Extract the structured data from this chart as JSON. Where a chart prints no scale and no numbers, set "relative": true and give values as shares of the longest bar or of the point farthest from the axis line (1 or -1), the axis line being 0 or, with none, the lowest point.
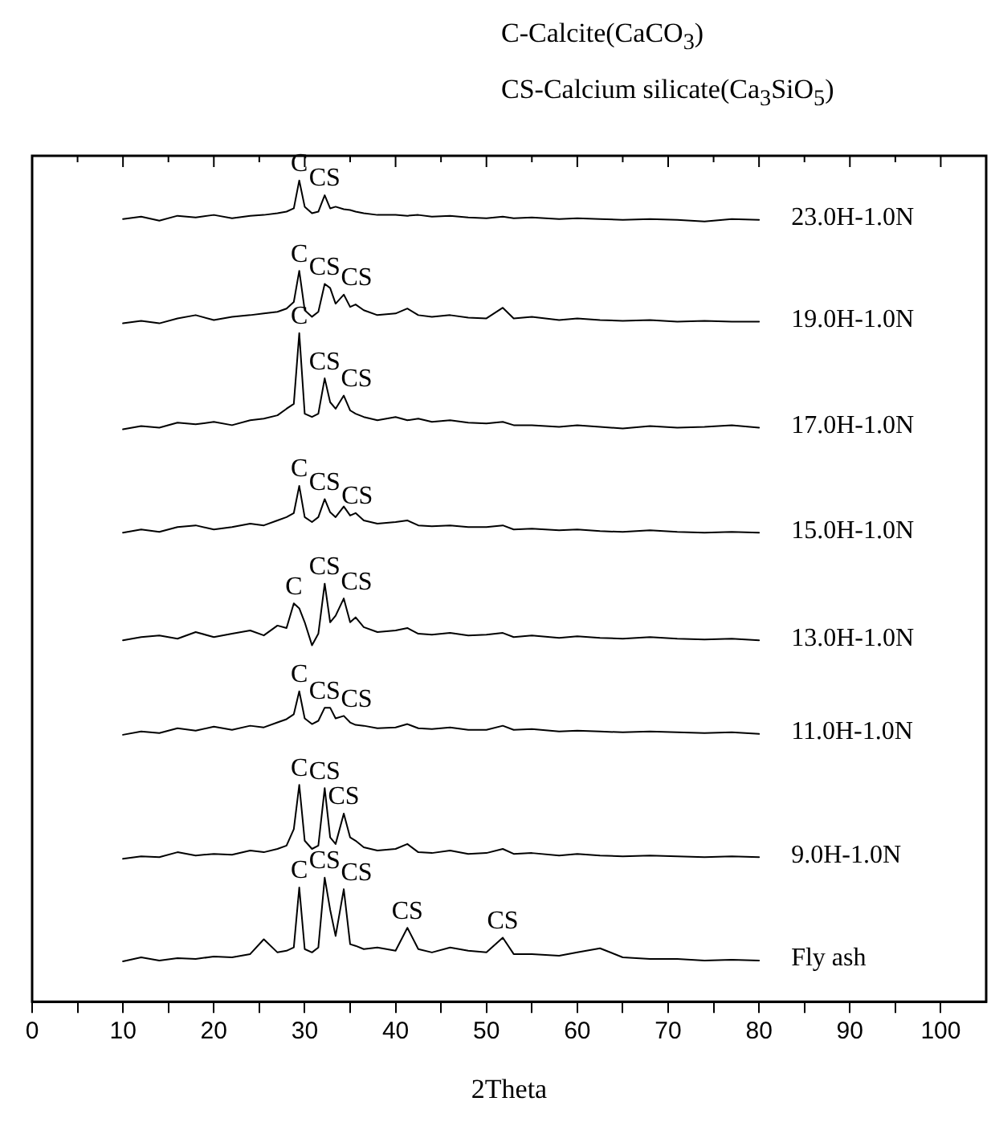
{
  "chart_data": {
    "type": "line",
    "title": "C-Calcite(CaCO$_{3}$)",
    "subtitle": "CS-Calcium silicate(Ca$_{3}$SiO$_{5}$)",
    "xlabel": "2Theta",
    "relative": true,
    "legend": false,
    "grid": false,
    "marker": "none",
    "line_style": "solid",
    "xlim": [
      0,
      105
    ],
    "xticks": [
      0,
      {
        "value": 5,
        "label": null
      },
      10,
      {
        "value": 15,
        "label": null
      },
      20,
      {
        "value": 25,
        "label": null
      },
      30,
      {
        "value": 35,
        "label": null
      },
      40,
      {
        "value": 45,
        "label": null
      },
      50,
      {
        "value": 55,
        "label": null
      },
      60,
      {
        "value": 65,
        "label": null
      },
      70,
      {
        "value": 75,
        "label": null
      },
      80,
      {
        "value": 85,
        "label": null
      },
      90,
      {
        "value": 95,
        "label": null
      },
      100
    ],
    "x": [
      10,
      12,
      14,
      16,
      18,
      20,
      22,
      24,
      25.5,
      27,
      28,
      28.8,
      29.4,
      30,
      30.8,
      31.5,
      32.2,
      32.8,
      33.4,
      34.3,
      35,
      35.6,
      36.5,
      38,
      40,
      41.3,
      42.5,
      44,
      46,
      48,
      50,
      51.8,
      53,
      55,
      58,
      60,
      62.5,
      65,
      68,
      71,
      74,
      77,
      80
    ],
    "series": [
      {
        "name": "23.0H-1.0N",
        "color": "#000000",
        "values": [
          0.953,
          0.956,
          0.951,
          0.957,
          0.955,
          0.958,
          0.954,
          0.957,
          0.958,
          0.96,
          0.962,
          0.966,
          1.0,
          0.968,
          0.96,
          0.962,
          0.982,
          0.966,
          0.968,
          0.965,
          0.964,
          0.962,
          0.96,
          0.958,
          0.958,
          0.957,
          0.958,
          0.956,
          0.957,
          0.955,
          0.954,
          0.956,
          0.954,
          0.955,
          0.953,
          0.954,
          0.953,
          0.952,
          0.953,
          0.952,
          0.95,
          0.953,
          0.952
        ]
      },
      {
        "name": "19.0H-1.0N",
        "color": "#000000",
        "values": [
          0.826,
          0.829,
          0.826,
          0.832,
          0.836,
          0.83,
          0.834,
          0.836,
          0.838,
          0.84,
          0.844,
          0.852,
          0.89,
          0.842,
          0.834,
          0.84,
          0.874,
          0.869,
          0.85,
          0.861,
          0.846,
          0.849,
          0.842,
          0.836,
          0.838,
          0.844,
          0.836,
          0.834,
          0.836,
          0.833,
          0.832,
          0.845,
          0.832,
          0.834,
          0.83,
          0.832,
          0.83,
          0.829,
          0.83,
          0.828,
          0.829,
          0.828,
          0.828
        ]
      },
      {
        "name": "17.0H-1.0N",
        "color": "#000000",
        "values": [
          0.697,
          0.701,
          0.699,
          0.705,
          0.703,
          0.706,
          0.702,
          0.708,
          0.71,
          0.714,
          0.722,
          0.728,
          0.814,
          0.716,
          0.712,
          0.716,
          0.759,
          0.73,
          0.722,
          0.738,
          0.72,
          0.716,
          0.712,
          0.708,
          0.712,
          0.708,
          0.71,
          0.706,
          0.708,
          0.705,
          0.704,
          0.706,
          0.702,
          0.702,
          0.7,
          0.702,
          0.7,
          0.698,
          0.701,
          0.699,
          0.7,
          0.702,
          0.699
        ]
      },
      {
        "name": "15.0H-1.0N",
        "color": "#000000",
        "values": [
          0.571,
          0.575,
          0.572,
          0.578,
          0.58,
          0.575,
          0.578,
          0.582,
          0.58,
          0.586,
          0.59,
          0.595,
          0.628,
          0.59,
          0.584,
          0.59,
          0.612,
          0.596,
          0.59,
          0.603,
          0.592,
          0.595,
          0.586,
          0.582,
          0.584,
          0.586,
          0.58,
          0.579,
          0.58,
          0.578,
          0.578,
          0.58,
          0.575,
          0.576,
          0.574,
          0.575,
          0.573,
          0.572,
          0.574,
          0.572,
          0.571,
          0.572,
          0.571
        ]
      },
      {
        "name": "13.0H-1.0N",
        "color": "#000000",
        "values": [
          0.44,
          0.444,
          0.446,
          0.442,
          0.45,
          0.444,
          0.448,
          0.452,
          0.446,
          0.458,
          0.455,
          0.485,
          0.479,
          0.462,
          0.434,
          0.448,
          0.509,
          0.462,
          0.47,
          0.491,
          0.462,
          0.468,
          0.456,
          0.45,
          0.452,
          0.455,
          0.448,
          0.447,
          0.449,
          0.446,
          0.447,
          0.449,
          0.444,
          0.446,
          0.443,
          0.445,
          0.443,
          0.442,
          0.444,
          0.442,
          0.441,
          0.442,
          0.44
        ]
      },
      {
        "name": "11.0H-1.0N",
        "color": "#000000",
        "values": [
          0.325,
          0.329,
          0.327,
          0.333,
          0.33,
          0.335,
          0.331,
          0.336,
          0.334,
          0.34,
          0.344,
          0.35,
          0.378,
          0.345,
          0.338,
          0.342,
          0.358,
          0.358,
          0.345,
          0.348,
          0.34,
          0.337,
          0.336,
          0.333,
          0.334,
          0.338,
          0.333,
          0.332,
          0.334,
          0.331,
          0.331,
          0.336,
          0.331,
          0.332,
          0.329,
          0.33,
          0.329,
          0.328,
          0.329,
          0.328,
          0.327,
          0.328,
          0.326
        ]
      },
      {
        "name": "9.0H-1.0N",
        "color": "#000000",
        "values": [
          0.174,
          0.177,
          0.176,
          0.182,
          0.178,
          0.18,
          0.179,
          0.184,
          0.182,
          0.186,
          0.19,
          0.21,
          0.264,
          0.196,
          0.186,
          0.19,
          0.26,
          0.2,
          0.192,
          0.229,
          0.2,
          0.196,
          0.188,
          0.184,
          0.186,
          0.192,
          0.182,
          0.181,
          0.184,
          0.18,
          0.181,
          0.186,
          0.18,
          0.181,
          0.178,
          0.18,
          0.178,
          0.177,
          0.178,
          0.177,
          0.176,
          0.177,
          0.176
        ]
      },
      {
        "name": "Fly ash",
        "color": "#000000",
        "values": [
          0.049,
          0.054,
          0.05,
          0.053,
          0.052,
          0.055,
          0.054,
          0.058,
          0.076,
          0.06,
          0.062,
          0.066,
          0.139,
          0.064,
          0.06,
          0.066,
          0.151,
          0.112,
          0.08,
          0.137,
          0.07,
          0.068,
          0.064,
          0.066,
          0.062,
          0.09,
          0.064,
          0.06,
          0.066,
          0.062,
          0.06,
          0.078,
          0.058,
          0.058,
          0.056,
          0.06,
          0.065,
          0.054,
          0.052,
          0.052,
          0.05,
          0.051,
          0.05
        ]
      }
    ],
    "annotations": [
      {
        "text": "C",
        "x": 29.4,
        "y": 1.0
      },
      {
        "text": "CS",
        "x": 32.2,
        "y": 0.982
      },
      {
        "text": "C",
        "x": 29.4,
        "y": 0.89
      },
      {
        "text": "CS",
        "x": 32.2,
        "y": 0.874
      },
      {
        "text": "CS",
        "x": 34.3,
        "y": 0.861
      },
      {
        "text": "C",
        "x": 29.4,
        "y": 0.814
      },
      {
        "text": "CS",
        "x": 32.2,
        "y": 0.759
      },
      {
        "text": "CS",
        "x": 34.3,
        "y": 0.738
      },
      {
        "text": "C",
        "x": 29.4,
        "y": 0.628
      },
      {
        "text": "CS",
        "x": 32.2,
        "y": 0.612
      },
      {
        "text": "CS",
        "x": 35.6,
        "y": 0.595
      },
      {
        "text": "C",
        "x": 28.8,
        "y": 0.485
      },
      {
        "text": "CS",
        "x": 32.2,
        "y": 0.509
      },
      {
        "text": "CS",
        "x": 34.3,
        "y": 0.491
      },
      {
        "text": "C",
        "x": 29.4,
        "y": 0.378
      },
      {
        "text": "CS",
        "x": 32.2,
        "y": 0.358
      },
      {
        "text": "CS",
        "x": 34.3,
        "y": 0.348
      },
      {
        "text": "C",
        "x": 29.4,
        "y": 0.264
      },
      {
        "text": "CS",
        "x": 32.2,
        "y": 0.26
      },
      {
        "text": "CS",
        "x": 34.3,
        "y": 0.229
      },
      {
        "text": "C",
        "x": 29.4,
        "y": 0.139
      },
      {
        "text": "CS",
        "x": 32.2,
        "y": 0.151
      },
      {
        "text": "CS",
        "x": 34.3,
        "y": 0.137
      },
      {
        "text": "CS",
        "x": 41.3,
        "y": 0.09
      },
      {
        "text": "CS",
        "x": 51.8,
        "y": 0.078
      }
    ]
  }
}
